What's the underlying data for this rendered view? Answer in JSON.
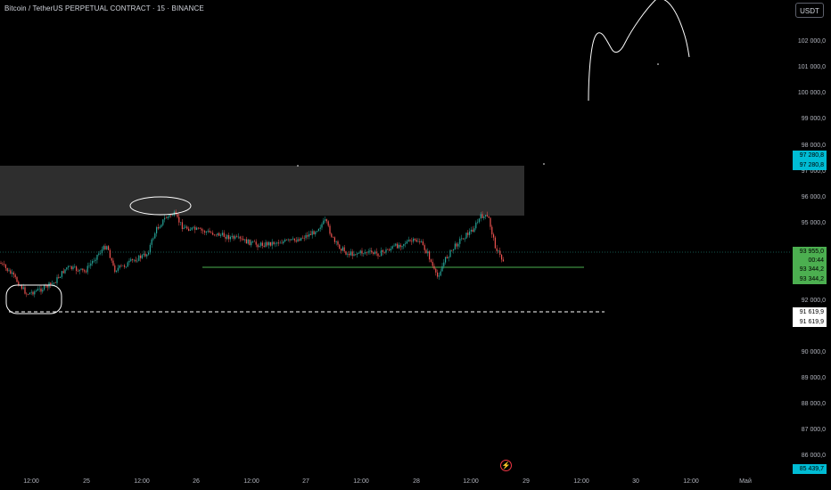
{
  "header": {
    "symbol": "Bitcoin / TetherUS PERPETUAL CONTRACT · 15 · BINANCE"
  },
  "currency_button": "USDT",
  "price_axis": {
    "ticks": [
      "102 000,0",
      "101 000,0",
      "100 000,0",
      "99 000,0",
      "98 000,0",
      "97 000,0",
      "96 000,0",
      "95 000,0",
      "92 000,0",
      "90 000,0",
      "89 000,0",
      "88 000,0",
      "87 000,0",
      "86 000,0"
    ]
  },
  "price_tags": {
    "zone_top_1": "97 280,8",
    "zone_top_2": "97 280,8",
    "last_price": "93 955,0",
    "countdown": "00:44",
    "support_1": "93 344,2",
    "support_2": "93 344,2",
    "low_1": "91 619,9",
    "low_2": "91 619,9",
    "bottom": "85 439,7"
  },
  "time_axis": {
    "ticks": [
      "12:00",
      "25",
      "12:00",
      "26",
      "12:00",
      "27",
      "12:00",
      "28",
      "12:00",
      "29",
      "12:00",
      "30",
      "12:00",
      "Май"
    ]
  },
  "colors": {
    "up": "#26a69a",
    "down": "#ef5350",
    "zone": "#2e2e2e",
    "support_line": "#4caf50",
    "tag_blue": "#00bcd4",
    "tag_green": "#4caf50"
  },
  "icons": {
    "alert": "lightning-icon"
  }
}
